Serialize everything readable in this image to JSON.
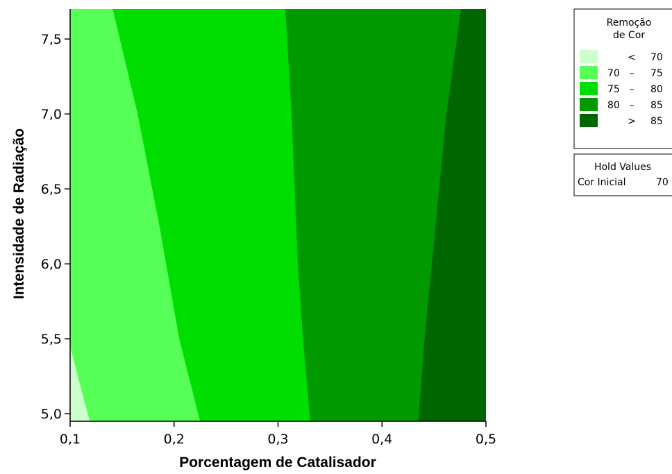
{
  "chart_data": {
    "type": "contour",
    "xlabel": "Porcentagem de Catalisador",
    "ylabel": "Intensidade de Radiação",
    "xlim": [
      0.1,
      0.5
    ],
    "ylim": [
      4.95,
      7.7
    ],
    "x_ticks": [
      "0,1",
      "0,2",
      "0,3",
      "0,4",
      "0,5"
    ],
    "x_tick_values": [
      0.1,
      0.2,
      0.3,
      0.4,
      0.5
    ],
    "y_ticks": [
      "5,0",
      "5,5",
      "6,0",
      "6,5",
      "7,0",
      "7,5"
    ],
    "y_tick_values": [
      5.0,
      5.5,
      6.0,
      6.5,
      7.0,
      7.5
    ],
    "legend": {
      "title_line1": "Remoção",
      "title_line2": "de Cor",
      "levels": [
        {
          "lo": "",
          "sep": "<",
          "hi": "70",
          "color": "#ccffcc"
        },
        {
          "lo": "70",
          "sep": "–",
          "hi": "75",
          "color": "#55ff55"
        },
        {
          "lo": "75",
          "sep": "–",
          "hi": "80",
          "color": "#00dd00"
        },
        {
          "lo": "80",
          "sep": "–",
          "hi": "85",
          "color": "#009900"
        },
        {
          "lo": "",
          "sep": ">",
          "hi": "85",
          "color": "#006600"
        }
      ]
    },
    "hold_values": {
      "title": "Hold Values",
      "label": "Cor Inicial",
      "value": "70"
    },
    "contours": [
      {
        "level": 70,
        "points": [
          [
            0.1,
            5.45
          ],
          [
            0.113,
            5.1
          ],
          [
            0.119,
            4.95
          ]
        ]
      },
      {
        "level": 75,
        "points": [
          [
            0.141,
            7.7
          ],
          [
            0.165,
            7.0
          ],
          [
            0.186,
            6.25
          ],
          [
            0.205,
            5.5
          ],
          [
            0.225,
            4.95
          ]
        ]
      },
      {
        "level": 80,
        "points": [
          [
            0.307,
            7.7
          ],
          [
            0.313,
            7.0
          ],
          [
            0.319,
            6.0
          ],
          [
            0.324,
            5.5
          ],
          [
            0.331,
            4.95
          ]
        ]
      },
      {
        "level": 85,
        "points": [
          [
            0.476,
            7.7
          ],
          [
            0.462,
            7.0
          ],
          [
            0.448,
            6.0
          ],
          [
            0.441,
            5.5
          ],
          [
            0.435,
            4.95
          ]
        ]
      }
    ]
  }
}
